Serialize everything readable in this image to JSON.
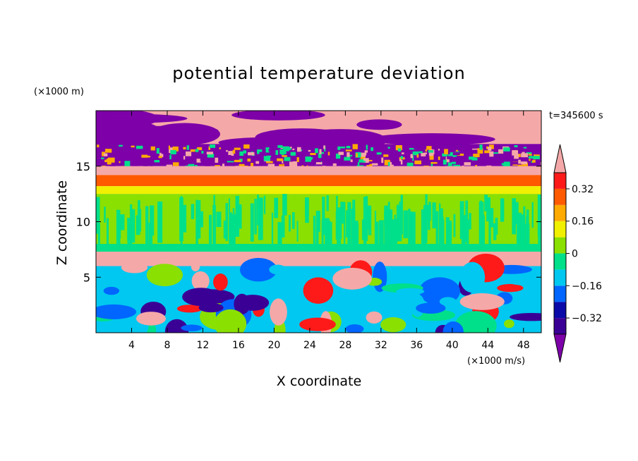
{
  "chart_data": {
    "type": "heatmap",
    "title": "potential temperature deviation",
    "xlabel": "X coordinate",
    "ylabel": "Z coordinate",
    "x_unit": "(×1000 m/s)",
    "y_unit": "(×1000 m)",
    "time_label": "t=345600 s",
    "xlim": [
      0,
      50
    ],
    "ylim": [
      0,
      20
    ],
    "x_ticks": [
      4,
      8,
      12,
      16,
      20,
      24,
      28,
      32,
      36,
      40,
      44,
      48
    ],
    "y_ticks": [
      5,
      10,
      15
    ],
    "colorbar": {
      "levels": [
        -0.4,
        -0.32,
        -0.24,
        -0.16,
        -0.08,
        0,
        0.08,
        0.16,
        0.24,
        0.32,
        0.4
      ],
      "tick_labels": [
        "−0.32",
        "−0.16",
        "0",
        "0.16",
        "0.32"
      ],
      "tick_values": [
        -0.32,
        -0.16,
        0,
        0.16,
        0.32
      ],
      "colors": [
        "#7d00a8",
        "#3a0096",
        "#0a0aa8",
        "#0066ff",
        "#00c8f0",
        "#00e08a",
        "#8ae000",
        "#f0f000",
        "#ffaa00",
        "#ff5a00",
        "#ff1a1a",
        "#f5a8a8"
      ]
    },
    "bands": [
      {
        "z_min": 17.0,
        "z_max": 20.0,
        "pattern": "mixed",
        "colors": [
          "#f5a8a8",
          "#7d00a8"
        ]
      },
      {
        "z_min": 15.0,
        "z_max": 17.0,
        "pattern": "noisy",
        "colors": [
          "#7d00a8",
          "#f5a8a8",
          "#00e08a",
          "#ffaa00"
        ]
      },
      {
        "z_min": 14.2,
        "z_max": 15.0,
        "pattern": "uniform",
        "color": "#f5a8a8"
      },
      {
        "z_min": 13.2,
        "z_max": 14.2,
        "pattern": "uniform",
        "color": "#ff5a00"
      },
      {
        "z_min": 12.5,
        "z_max": 13.2,
        "pattern": "uniform",
        "color": "#f0f000"
      },
      {
        "z_min": 8.0,
        "z_max": 12.5,
        "pattern": "streaky",
        "colors": [
          "#8ae000",
          "#00e08a"
        ]
      },
      {
        "z_min": 7.3,
        "z_max": 8.0,
        "pattern": "uniform",
        "color": "#00e08a"
      },
      {
        "z_min": 6.0,
        "z_max": 7.3,
        "pattern": "uniform",
        "color": "#f5a8a8"
      },
      {
        "z_min": 0.0,
        "z_max": 6.0,
        "pattern": "turbulent",
        "colors": [
          "#00c8f0",
          "#00e08a",
          "#0066ff",
          "#3a0096",
          "#8ae000",
          "#ff1a1a",
          "#f5a8a8"
        ]
      }
    ]
  }
}
